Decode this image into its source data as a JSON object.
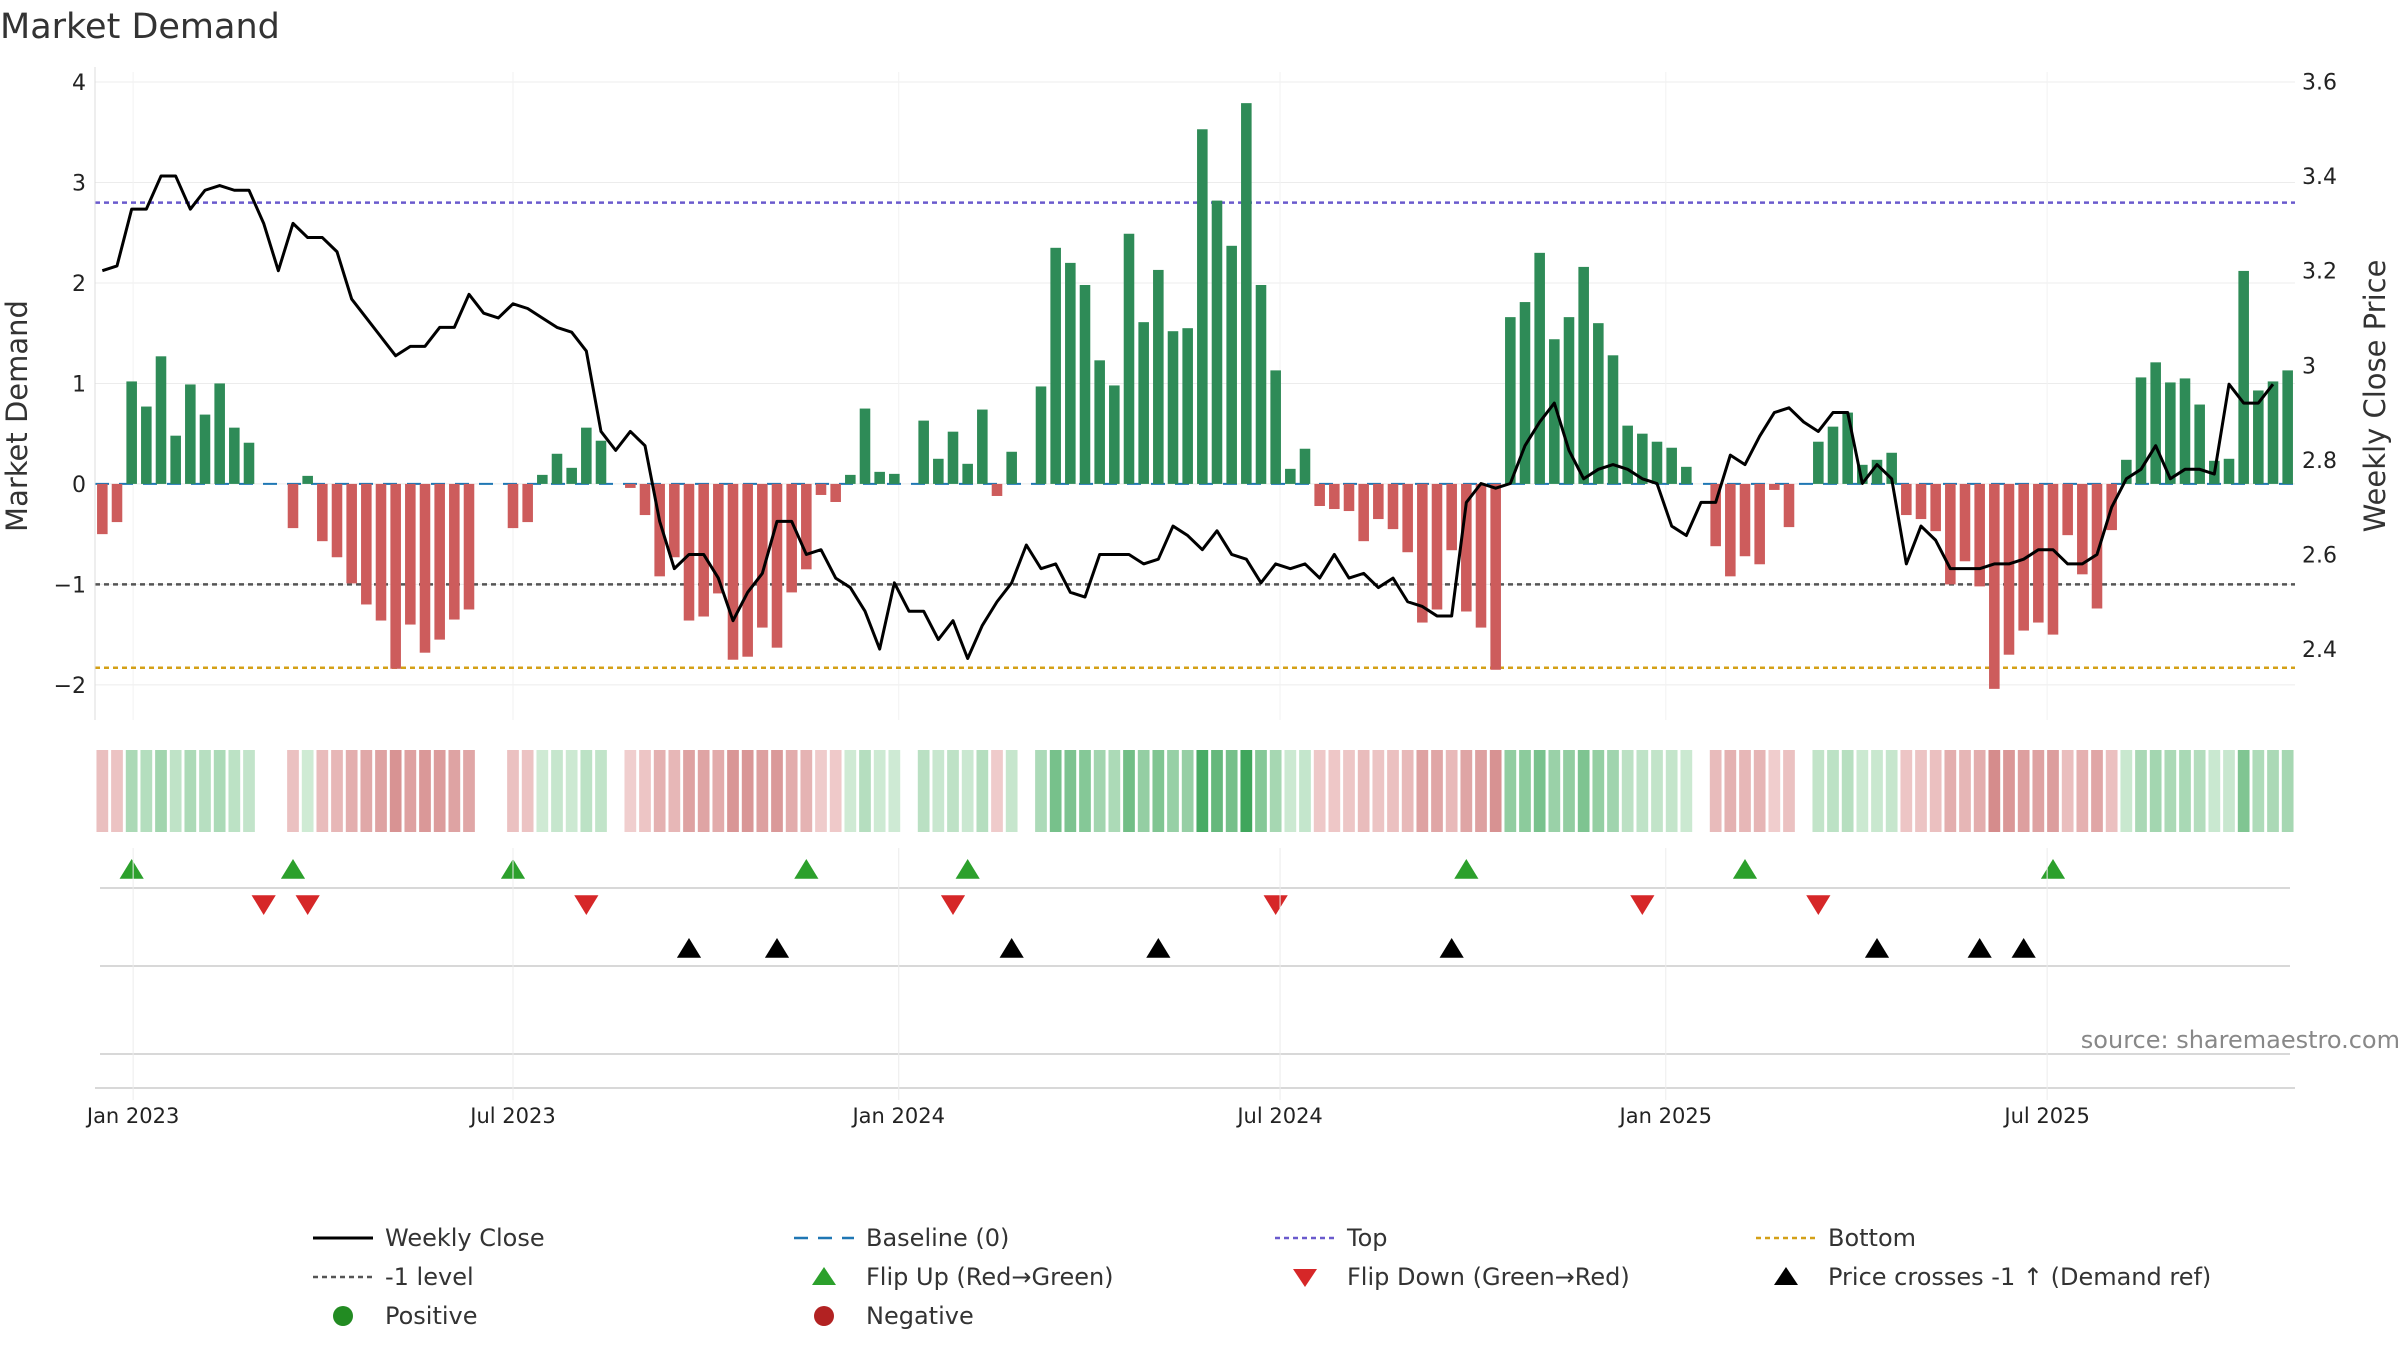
{
  "chart_data": {
    "type": "bar",
    "title": "Market Demand",
    "ylabel_left": "Market Demand",
    "ylabel_right": "Weekly Close Price",
    "ylim_left": [
      -2.35,
      4.1
    ],
    "ylim_right": [
      2.25,
      3.62
    ],
    "yticks_left": [
      -2,
      -1,
      0,
      1,
      2,
      3,
      4
    ],
    "yticks_left_labels": [
      "−2",
      "−1",
      "0",
      "1",
      "2",
      "3",
      "4"
    ],
    "yticks_right": [
      2.4,
      2.6,
      2.8,
      3.0,
      3.2,
      3.4,
      3.6
    ],
    "yticks_right_labels": [
      "2.4",
      "2.6",
      "2.8",
      "3",
      "3.2",
      "3.4",
      "3.6"
    ],
    "xtick_labels": [
      "Jan 2023",
      "Jul 2023",
      "Jan 2024",
      "Jul 2024",
      "Jan 2025",
      "Jul 2025"
    ],
    "xtick_weeks": [
      2.1,
      28.0,
      54.3,
      80.3,
      106.6,
      132.6
    ],
    "reference_lines": {
      "baseline": 0,
      "minus_one": -1,
      "top": 2.8,
      "bottom": -1.83
    },
    "colors": {
      "positive": "#2e8b57",
      "negative": "#cd5c5c",
      "price": "#000000",
      "baseline": "#1f77b4",
      "minus_one": "#555555",
      "top": "#6a5acd",
      "bottom": "#d4a017",
      "flip_up": "#2ca02c",
      "flip_down": "#d62728",
      "cross": "#000000",
      "legend_positive": "#228b22",
      "legend_negative": "#b22222"
    },
    "demand": [
      -0.5,
      -0.38,
      1.02,
      0.77,
      1.27,
      0.48,
      0.99,
      0.69,
      1.0,
      0.56,
      0.41,
      0,
      0,
      -0.44,
      0.08,
      -0.57,
      -0.73,
      -0.99,
      -1.2,
      -1.36,
      -1.84,
      -1.4,
      -1.68,
      -1.55,
      -1.35,
      -1.25,
      0,
      0,
      -0.44,
      -0.38,
      0.09,
      0.3,
      0.16,
      0.56,
      0.43,
      0,
      -0.04,
      -0.31,
      -0.92,
      -0.73,
      -1.36,
      -1.32,
      -1.09,
      -1.75,
      -1.72,
      -1.43,
      -1.63,
      -1.08,
      -0.85,
      -0.11,
      -0.18,
      0.09,
      0.75,
      0.12,
      0.1,
      0,
      0.63,
      0.25,
      0.52,
      0.2,
      0.74,
      -0.12,
      0.32,
      0,
      0.97,
      2.35,
      2.2,
      1.98,
      1.23,
      0.98,
      2.49,
      1.61,
      2.13,
      1.52,
      1.55,
      3.53,
      2.82,
      2.37,
      3.79,
      1.98,
      1.13,
      0.15,
      0.35,
      -0.22,
      -0.25,
      -0.27,
      -0.57,
      -0.35,
      -0.45,
      -0.68,
      -1.38,
      -1.25,
      -0.66,
      -1.27,
      -1.43,
      -1.85,
      1.66,
      1.81,
      2.3,
      1.44,
      1.66,
      2.16,
      1.6,
      1.28,
      0.58,
      0.5,
      0.42,
      0.36,
      0.17,
      0,
      -0.62,
      -0.92,
      -0.72,
      -0.8,
      -0.06,
      -0.43,
      0,
      0.42,
      0.57,
      0.71,
      0.19,
      0.24,
      0.31,
      -0.31,
      -0.35,
      -0.47,
      -1.0,
      -0.77,
      -1.02,
      -2.04,
      -1.7,
      -1.46,
      -1.38,
      -1.5,
      -0.51,
      -0.9,
      -1.24,
      -0.46,
      0.24,
      1.06,
      1.21,
      1.01,
      1.05,
      0.79,
      0.23,
      0.25,
      2.12,
      0.93,
      1.02,
      1.13
    ],
    "price": [
      3.2,
      3.21,
      3.33,
      3.33,
      3.4,
      3.4,
      3.33,
      3.37,
      3.38,
      3.37,
      3.37,
      3.3,
      3.2,
      3.3,
      3.27,
      3.27,
      3.24,
      3.14,
      3.1,
      3.06,
      3.02,
      3.04,
      3.04,
      3.08,
      3.08,
      3.15,
      3.11,
      3.1,
      3.13,
      3.12,
      3.1,
      3.08,
      3.07,
      3.03,
      2.86,
      2.82,
      2.86,
      2.83,
      2.67,
      2.57,
      2.6,
      2.6,
      2.55,
      2.46,
      2.52,
      2.56,
      2.67,
      2.67,
      2.6,
      2.61,
      2.55,
      2.53,
      2.48,
      2.4,
      2.54,
      2.48,
      2.48,
      2.42,
      2.46,
      2.38,
      2.45,
      2.5,
      2.54,
      2.62,
      2.57,
      2.58,
      2.52,
      2.51,
      2.6,
      2.6,
      2.6,
      2.58,
      2.59,
      2.66,
      2.64,
      2.61,
      2.65,
      2.6,
      2.59,
      2.54,
      2.58,
      2.57,
      2.58,
      2.55,
      2.6,
      2.55,
      2.56,
      2.53,
      2.55,
      2.5,
      2.49,
      2.47,
      2.47,
      2.71,
      2.75,
      2.74,
      2.75,
      2.83,
      2.88,
      2.92,
      2.82,
      2.76,
      2.78,
      2.79,
      2.78,
      2.76,
      2.75,
      2.66,
      2.64,
      2.71,
      2.71,
      2.81,
      2.79,
      2.85,
      2.9,
      2.91,
      2.88,
      2.86,
      2.9,
      2.9,
      2.75,
      2.79,
      2.76,
      2.58,
      2.66,
      2.63,
      2.57,
      2.57,
      2.57,
      2.58,
      2.58,
      2.59,
      2.61,
      2.61,
      2.58,
      2.58,
      2.6,
      2.7,
      2.76,
      2.78,
      2.83,
      2.76,
      2.78,
      2.78,
      2.77,
      2.96,
      2.92,
      2.92,
      2.96
    ],
    "flip_up_weeks": [
      2,
      13,
      28,
      48,
      59,
      93,
      112,
      133
    ],
    "flip_down_weeks": [
      11,
      14,
      33,
      58,
      80,
      105,
      117
    ],
    "cross_weeks": [
      40,
      46,
      62,
      72,
      92,
      121,
      128,
      131
    ],
    "source_text": "source: sharemaestro.com",
    "legend": [
      {
        "label": "Weekly Close",
        "kind": "line-solid",
        "color": "#000000"
      },
      {
        "label": "Baseline (0)",
        "kind": "line-dash",
        "color": "#1f77b4"
      },
      {
        "label": "Top",
        "kind": "line-dot",
        "color": "#6a5acd"
      },
      {
        "label": "Bottom",
        "kind": "line-dot",
        "color": "#d4a017"
      },
      {
        "label": "-1 level",
        "kind": "line-dot",
        "color": "#555555"
      },
      {
        "label": "Flip Up (Red→Green)",
        "kind": "tri-up",
        "color": "#2ca02c"
      },
      {
        "label": "Flip Down (Green→Red)",
        "kind": "tri-down",
        "color": "#d62728"
      },
      {
        "label": "Price crosses -1 ↑ (Demand ref)",
        "kind": "tri-up",
        "color": "#000000"
      },
      {
        "label": "Positive",
        "kind": "dot",
        "color": "#228b22"
      },
      {
        "label": "Negative",
        "kind": "dot",
        "color": "#b22222"
      }
    ]
  }
}
